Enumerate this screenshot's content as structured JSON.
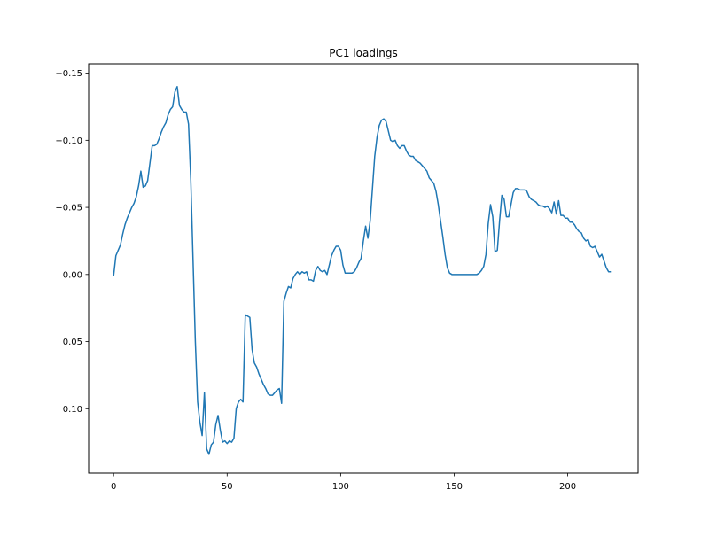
{
  "chart_data": {
    "type": "line",
    "title": "PC1 loadings",
    "xlabel": "",
    "ylabel": "",
    "xlim": [
      -11,
      231
    ],
    "ylim": [
      0.148,
      -0.157
    ],
    "y_inverted": true,
    "grid": false,
    "x_ticks": [
      0,
      50,
      100,
      150,
      200
    ],
    "x_tick_labels": [
      "0",
      "50",
      "100",
      "150",
      "200"
    ],
    "y_ticks": [
      -0.15,
      -0.1,
      -0.05,
      0.0,
      0.05,
      0.1
    ],
    "y_tick_labels": [
      "−0.15",
      "−0.10",
      "−0.05",
      "0.00",
      "0.05",
      "0.10"
    ],
    "series": [
      {
        "color": "#1f77b4",
        "points": [
          [
            0,
            0.001
          ],
          [
            1,
            -0.014
          ],
          [
            2,
            -0.018
          ],
          [
            3,
            -0.022
          ],
          [
            4,
            -0.03
          ],
          [
            5,
            -0.037
          ],
          [
            6,
            -0.042
          ],
          [
            7,
            -0.046
          ],
          [
            8,
            -0.05
          ],
          [
            9,
            -0.053
          ],
          [
            10,
            -0.058
          ],
          [
            11,
            -0.066
          ],
          [
            12,
            -0.077
          ],
          [
            13,
            -0.065
          ],
          [
            14,
            -0.066
          ],
          [
            15,
            -0.07
          ],
          [
            16,
            -0.083
          ],
          [
            17,
            -0.096
          ],
          [
            18,
            -0.096
          ],
          [
            19,
            -0.097
          ],
          [
            20,
            -0.101
          ],
          [
            21,
            -0.106
          ],
          [
            22,
            -0.11
          ],
          [
            23,
            -0.113
          ],
          [
            24,
            -0.119
          ],
          [
            25,
            -0.123
          ],
          [
            26,
            -0.125
          ],
          [
            27,
            -0.136
          ],
          [
            28,
            -0.14
          ],
          [
            29,
            -0.126
          ],
          [
            30,
            -0.123
          ],
          [
            31,
            -0.121
          ],
          [
            32,
            -0.121
          ],
          [
            33,
            -0.112
          ],
          [
            34,
            -0.07
          ],
          [
            35,
            -0.01
          ],
          [
            36,
            0.05
          ],
          [
            37,
            0.095
          ],
          [
            38,
            0.11
          ],
          [
            39,
            0.12
          ],
          [
            40,
            0.088
          ],
          [
            41,
            0.13
          ],
          [
            42,
            0.134
          ],
          [
            43,
            0.127
          ],
          [
            44,
            0.125
          ],
          [
            45,
            0.112
          ],
          [
            46,
            0.105
          ],
          [
            47,
            0.116
          ],
          [
            48,
            0.125
          ],
          [
            49,
            0.124
          ],
          [
            50,
            0.126
          ],
          [
            51,
            0.124
          ],
          [
            52,
            0.125
          ],
          [
            53,
            0.122
          ],
          [
            54,
            0.1
          ],
          [
            55,
            0.095
          ],
          [
            56,
            0.093
          ],
          [
            57,
            0.095
          ],
          [
            58,
            0.03
          ],
          [
            59,
            0.031
          ],
          [
            60,
            0.032
          ],
          [
            61,
            0.056
          ],
          [
            62,
            0.066
          ],
          [
            63,
            0.069
          ],
          [
            64,
            0.074
          ],
          [
            65,
            0.078
          ],
          [
            66,
            0.082
          ],
          [
            67,
            0.085
          ],
          [
            68,
            0.089
          ],
          [
            69,
            0.09
          ],
          [
            70,
            0.09
          ],
          [
            71,
            0.088
          ],
          [
            72,
            0.086
          ],
          [
            73,
            0.085
          ],
          [
            74,
            0.096
          ],
          [
            75,
            0.02
          ],
          [
            76,
            0.014
          ],
          [
            77,
            0.009
          ],
          [
            78,
            0.01
          ],
          [
            79,
            0.003
          ],
          [
            80,
            0.0
          ],
          [
            81,
            -0.002
          ],
          [
            82,
            0.0
          ],
          [
            83,
            -0.002
          ],
          [
            84,
            -0.001
          ],
          [
            85,
            -0.002
          ],
          [
            86,
            0.004
          ],
          [
            87,
            0.004
          ],
          [
            88,
            0.005
          ],
          [
            89,
            -0.003
          ],
          [
            90,
            -0.006
          ],
          [
            91,
            -0.003
          ],
          [
            92,
            -0.002
          ],
          [
            93,
            -0.003
          ],
          [
            94,
            0.0
          ],
          [
            95,
            -0.007
          ],
          [
            96,
            -0.014
          ],
          [
            97,
            -0.018
          ],
          [
            98,
            -0.021
          ],
          [
            99,
            -0.021
          ],
          [
            100,
            -0.018
          ],
          [
            101,
            -0.007
          ],
          [
            102,
            -0.001
          ],
          [
            103,
            -0.001
          ],
          [
            104,
            -0.001
          ],
          [
            105,
            -0.001
          ],
          [
            106,
            -0.002
          ],
          [
            107,
            -0.005
          ],
          [
            108,
            -0.009
          ],
          [
            109,
            -0.012
          ],
          [
            110,
            -0.025
          ],
          [
            111,
            -0.036
          ],
          [
            112,
            -0.027
          ],
          [
            113,
            -0.04
          ],
          [
            114,
            -0.064
          ],
          [
            115,
            -0.088
          ],
          [
            116,
            -0.102
          ],
          [
            117,
            -0.111
          ],
          [
            118,
            -0.115
          ],
          [
            119,
            -0.116
          ],
          [
            120,
            -0.114
          ],
          [
            121,
            -0.107
          ],
          [
            122,
            -0.1
          ],
          [
            123,
            -0.099
          ],
          [
            124,
            -0.1
          ],
          [
            125,
            -0.096
          ],
          [
            126,
            -0.094
          ],
          [
            127,
            -0.096
          ],
          [
            128,
            -0.096
          ],
          [
            129,
            -0.092
          ],
          [
            130,
            -0.089
          ],
          [
            131,
            -0.088
          ],
          [
            132,
            -0.088
          ],
          [
            133,
            -0.085
          ],
          [
            134,
            -0.084
          ],
          [
            135,
            -0.083
          ],
          [
            136,
            -0.081
          ],
          [
            137,
            -0.079
          ],
          [
            138,
            -0.077
          ],
          [
            139,
            -0.072
          ],
          [
            140,
            -0.07
          ],
          [
            141,
            -0.068
          ],
          [
            142,
            -0.062
          ],
          [
            143,
            -0.052
          ],
          [
            144,
            -0.04
          ],
          [
            145,
            -0.028
          ],
          [
            146,
            -0.015
          ],
          [
            147,
            -0.005
          ],
          [
            148,
            -0.001
          ],
          [
            149,
            0.0
          ],
          [
            150,
            0.0
          ],
          [
            151,
            0.0
          ],
          [
            152,
            0.0
          ],
          [
            153,
            0.0
          ],
          [
            154,
            0.0
          ],
          [
            155,
            0.0
          ],
          [
            156,
            0.0
          ],
          [
            157,
            0.0
          ],
          [
            158,
            0.0
          ],
          [
            159,
            0.0
          ],
          [
            160,
            0.0
          ],
          [
            161,
            -0.001
          ],
          [
            162,
            -0.003
          ],
          [
            163,
            -0.006
          ],
          [
            164,
            -0.015
          ],
          [
            165,
            -0.038
          ],
          [
            166,
            -0.052
          ],
          [
            167,
            -0.043
          ],
          [
            168,
            -0.017
          ],
          [
            169,
            -0.018
          ],
          [
            170,
            -0.04
          ],
          [
            171,
            -0.059
          ],
          [
            172,
            -0.056
          ],
          [
            173,
            -0.043
          ],
          [
            174,
            -0.043
          ],
          [
            175,
            -0.052
          ],
          [
            176,
            -0.061
          ],
          [
            177,
            -0.064
          ],
          [
            178,
            -0.064
          ],
          [
            179,
            -0.063
          ],
          [
            180,
            -0.063
          ],
          [
            181,
            -0.063
          ],
          [
            182,
            -0.062
          ],
          [
            183,
            -0.058
          ],
          [
            184,
            -0.056
          ],
          [
            185,
            -0.055
          ],
          [
            186,
            -0.054
          ],
          [
            187,
            -0.052
          ],
          [
            188,
            -0.051
          ],
          [
            189,
            -0.051
          ],
          [
            190,
            -0.05
          ],
          [
            191,
            -0.051
          ],
          [
            192,
            -0.049
          ],
          [
            193,
            -0.046
          ],
          [
            194,
            -0.054
          ],
          [
            195,
            -0.045
          ],
          [
            196,
            -0.055
          ],
          [
            197,
            -0.044
          ],
          [
            198,
            -0.044
          ],
          [
            199,
            -0.042
          ],
          [
            200,
            -0.042
          ],
          [
            201,
            -0.039
          ],
          [
            202,
            -0.039
          ],
          [
            203,
            -0.037
          ],
          [
            204,
            -0.034
          ],
          [
            205,
            -0.032
          ],
          [
            206,
            -0.031
          ],
          [
            207,
            -0.027
          ],
          [
            208,
            -0.025
          ],
          [
            209,
            -0.026
          ],
          [
            210,
            -0.021
          ],
          [
            211,
            -0.02
          ],
          [
            212,
            -0.021
          ],
          [
            213,
            -0.017
          ],
          [
            214,
            -0.013
          ],
          [
            215,
            -0.015
          ],
          [
            216,
            -0.01
          ],
          [
            217,
            -0.005
          ],
          [
            218,
            -0.002
          ],
          [
            219,
            -0.002
          ]
        ]
      }
    ]
  }
}
